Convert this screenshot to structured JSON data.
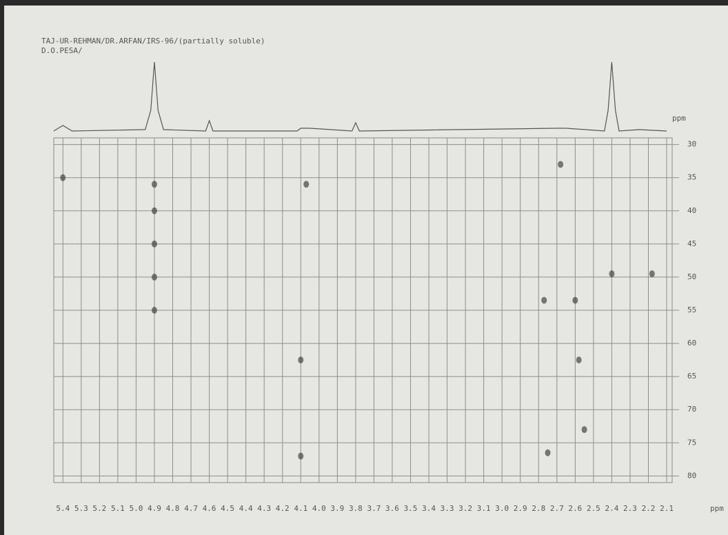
{
  "chart_data": [
    {
      "type": "scatter",
      "title": "TAJ-UR-REHMAN/DR.ARFAN/IRS-96/(partially soluble)",
      "subtitle": "D.O.PESA/",
      "xlabel": "ppm",
      "ylabel": "ppm",
      "x": [
        5.4,
        4.9,
        4.9,
        4.9,
        4.9,
        4.9,
        4.07,
        2.68,
        2.4,
        2.18,
        2.77,
        2.6,
        2.58,
        2.55,
        4.1,
        4.1,
        2.75
      ],
      "values": [
        35,
        36,
        40,
        45,
        50,
        55,
        36,
        33,
        49.5,
        49.5,
        53.5,
        53.5,
        62.5,
        73,
        62.5,
        77,
        76.5
      ],
      "color": "#444444",
      "xlim": [
        5.45,
        2.07
      ],
      "ylim": [
        29,
        81
      ],
      "xticks": [
        5.4,
        5.3,
        5.2,
        5.1,
        {
          "value": 5,
          "label": "5.0"
        },
        4.9,
        4.8,
        4.7,
        4.6,
        4.5,
        4.4,
        4.3,
        4.2,
        4.1,
        {
          "value": 4,
          "label": "4.0"
        },
        3.9,
        3.8,
        3.7,
        3.6,
        3.5,
        3.4,
        3.3,
        3.2,
        3.1,
        {
          "value": 3,
          "label": "3.0"
        },
        2.9,
        2.8,
        2.7,
        2.6,
        2.5,
        2.4,
        2.3,
        2.2,
        2.1
      ],
      "yticks": [
        30,
        35,
        40,
        45,
        50,
        55,
        60,
        65,
        70,
        75,
        80
      ],
      "grid": true
    },
    {
      "type": "line",
      "x": [
        5.45,
        5.4,
        5.35,
        4.95,
        4.92,
        4.9,
        4.88,
        4.85,
        4.62,
        4.6,
        4.58,
        4.12,
        4.1,
        4.05,
        3.82,
        3.8,
        3.78,
        2.7,
        2.65,
        2.44,
        2.42,
        2.4,
        2.38,
        2.36,
        2.25,
        2.1
      ],
      "values": [
        0,
        8,
        0,
        2,
        30,
        100,
        30,
        2,
        0,
        15,
        0,
        0,
        4,
        4,
        0,
        12,
        0,
        4,
        4,
        0,
        30,
        100,
        30,
        0,
        2,
        0
      ],
      "color": "#555555",
      "xlim": [
        5.45,
        2.07
      ],
      "ylim": [
        0,
        100
      ]
    }
  ]
}
